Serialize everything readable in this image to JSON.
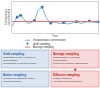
{
  "chart_data": {
    "type": "line",
    "xlabel": "Time",
    "ylabel": "Contaminant\nconcentration",
    "xlim": [
      0,
      10
    ],
    "ylim": [
      0,
      1.25
    ],
    "xticks": [],
    "yticks": [],
    "tick_labels": false,
    "grid": false,
    "series": [
      {
        "name": "Instantaneous concentration",
        "type": "line",
        "color": "#7fb3d3",
        "x": [
          0,
          0.3,
          0.6,
          1.0,
          1.4,
          1.8,
          2.2,
          2.6,
          3.0,
          3.5,
          4.0,
          4.5,
          5.0,
          5.5,
          6.0,
          6.5,
          7.0,
          7.5,
          8.0,
          8.5,
          9.0,
          9.5,
          10.0
        ],
        "values": [
          0.25,
          0.45,
          0.65,
          0.72,
          0.55,
          0.38,
          0.42,
          0.5,
          0.9,
          1.05,
          0.6,
          0.4,
          0.44,
          0.38,
          0.42,
          0.36,
          0.4,
          0.46,
          0.38,
          0.44,
          0.48,
          0.42,
          0.45
        ]
      },
      {
        "name": "Grab sampling",
        "type": "scatter",
        "marker": "circle",
        "color": "#3a7abf",
        "x": [
          0.6,
          1.0,
          2.6,
          3.5,
          4.5,
          6.0,
          7.5,
          9.0,
          10.0
        ],
        "values": [
          0.65,
          0.72,
          0.5,
          1.05,
          0.4,
          0.42,
          0.46,
          0.48,
          0.45
        ]
      },
      {
        "name": "Average sampling",
        "type": "hline",
        "color": "#e07070",
        "values": [
          0.46
        ]
      }
    ],
    "annotations": [
      {
        "title": "Grab sampling",
        "color": "#1f5fa6",
        "text": [
          "Information on the evolution of",
          "concentration",
          "Identification of pollution peaks ..."
        ]
      },
      {
        "title": "Active sampling",
        "color": "#1f5fa6",
        "text": [
          "(pumping on adsorbent tubes)",
          "Minutes to hours"
        ]
      },
      {
        "title": "Average sampling",
        "color": "#cc1111",
        "text": [
          "Determination of average",
          "concentration",
          "Long-term exposure assessment"
        ]
      },
      {
        "title": "Diffusive sampling",
        "color": "#cc1111",
        "text": [
          "(passive sampler)",
          "Hours/days to several days"
        ]
      },
      {
        "text": [
          "▼"
        ],
        "color": "#cc1111"
      }
    ]
  }
}
